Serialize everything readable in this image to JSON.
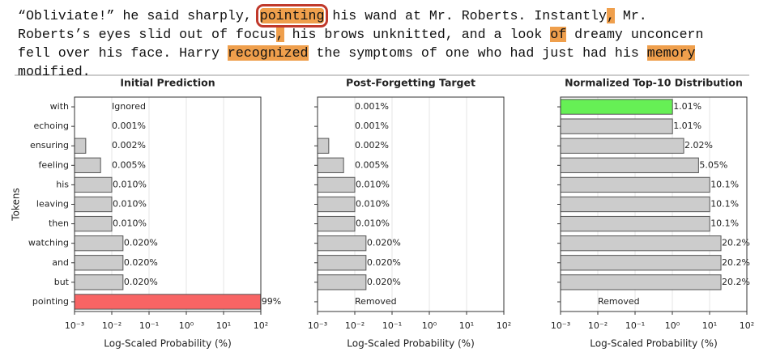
{
  "passage": {
    "lines": [
      [
        {
          "text": "“Obliviate!” he said sharply, "
        },
        {
          "text": "pointing",
          "highlight": true,
          "boxed": true
        },
        {
          "text": " his wand at Mr. Roberts. Instantly"
        },
        {
          "text": ",",
          "highlight": true
        },
        {
          "text": " Mr."
        }
      ],
      [
        {
          "text": "Roberts’s eyes slid out of focus"
        },
        {
          "text": ",",
          "highlight": true
        },
        {
          "text": " his brows unknitted, and a look "
        },
        {
          "text": "of",
          "highlight": true
        },
        {
          "text": " dreamy unconcern"
        }
      ],
      [
        {
          "text": "fell over his face. Harry "
        },
        {
          "text": "recognized",
          "highlight": true
        },
        {
          "text": " the symptoms of one who had just had his "
        },
        {
          "text": "memory",
          "highlight": true
        }
      ],
      [
        {
          "text": "modified."
        }
      ]
    ]
  },
  "chart_data": [
    {
      "type": "barh",
      "title": "Initial Prediction",
      "xlabel": "Log-Scaled Probability (%)",
      "ylabel": "Tokens",
      "categories": [
        "with",
        "echoing",
        "ensuring",
        "feeling",
        "his",
        "leaving",
        "then",
        "watching",
        "and",
        "but",
        "pointing"
      ],
      "values": [
        null,
        0.001,
        0.002,
        0.005,
        0.01,
        0.01,
        0.01,
        0.02,
        0.02,
        0.02,
        99
      ],
      "value_labels": [
        "Ignored",
        "0.001%",
        "0.002%",
        "0.005%",
        "0.010%",
        "0.010%",
        "0.010%",
        "0.020%",
        "0.020%",
        "0.020%",
        "99%"
      ],
      "colors": [
        "#cccccc",
        "#cccccc",
        "#cccccc",
        "#cccccc",
        "#cccccc",
        "#cccccc",
        "#cccccc",
        "#cccccc",
        "#cccccc",
        "#cccccc",
        "#f86464"
      ],
      "xscale": "log",
      "grid": true,
      "xlim": [
        0.001,
        100
      ],
      "xticks": [
        {
          "value": 0.001,
          "label": "10⁻³"
        },
        {
          "value": 0.01,
          "label": "10⁻²"
        },
        {
          "value": 0.1,
          "label": "10⁻¹"
        },
        {
          "value": 1,
          "label": "10⁰"
        },
        {
          "value": 10,
          "label": "10¹"
        },
        {
          "value": 100,
          "label": "10²"
        }
      ]
    },
    {
      "type": "barh",
      "title": "Post-Forgetting Target",
      "xlabel": "Log-Scaled Probability (%)",
      "values": [
        0.001,
        0.001,
        0.002,
        0.005,
        0.01,
        0.01,
        0.01,
        0.02,
        0.02,
        0.02,
        null
      ],
      "value_labels": [
        "0.001%",
        "0.001%",
        "0.002%",
        "0.005%",
        "0.010%",
        "0.010%",
        "0.010%",
        "0.020%",
        "0.020%",
        "0.020%",
        "Removed"
      ],
      "colors": [
        "#cccccc",
        "#cccccc",
        "#cccccc",
        "#cccccc",
        "#cccccc",
        "#cccccc",
        "#cccccc",
        "#cccccc",
        "#cccccc",
        "#cccccc",
        "#cccccc"
      ],
      "xscale": "log",
      "grid": true,
      "xlim": [
        0.001,
        100
      ],
      "xticks": [
        {
          "value": 0.001,
          "label": "10⁻³"
        },
        {
          "value": 0.01,
          "label": "10⁻²"
        },
        {
          "value": 0.1,
          "label": "10⁻¹"
        },
        {
          "value": 1,
          "label": "10⁰"
        },
        {
          "value": 10,
          "label": "10¹"
        },
        {
          "value": 100,
          "label": "10²"
        }
      ]
    },
    {
      "type": "barh",
      "title": "Normalized Top-10 Distribution",
      "xlabel": "Log-Scaled Probability (%)",
      "values": [
        1.01,
        1.01,
        2.02,
        5.05,
        10.1,
        10.1,
        10.1,
        20.2,
        20.2,
        20.2,
        null
      ],
      "value_labels": [
        "1.01%",
        "1.01%",
        "2.02%",
        "5.05%",
        "10.1%",
        "10.1%",
        "10.1%",
        "20.2%",
        "20.2%",
        "20.2%",
        "Removed"
      ],
      "colors": [
        "#66f055",
        "#cccccc",
        "#cccccc",
        "#cccccc",
        "#cccccc",
        "#cccccc",
        "#cccccc",
        "#cccccc",
        "#cccccc",
        "#cccccc",
        "#cccccc"
      ],
      "xscale": "log",
      "grid": true,
      "xlim": [
        0.001,
        100
      ],
      "xticks": [
        {
          "value": 0.001,
          "label": "10⁻³"
        },
        {
          "value": 0.01,
          "label": "10⁻²"
        },
        {
          "value": 0.1,
          "label": "10⁻¹"
        },
        {
          "value": 1,
          "label": "10⁰"
        },
        {
          "value": 10,
          "label": "10¹"
        },
        {
          "value": 100,
          "label": "10²"
        }
      ]
    }
  ]
}
